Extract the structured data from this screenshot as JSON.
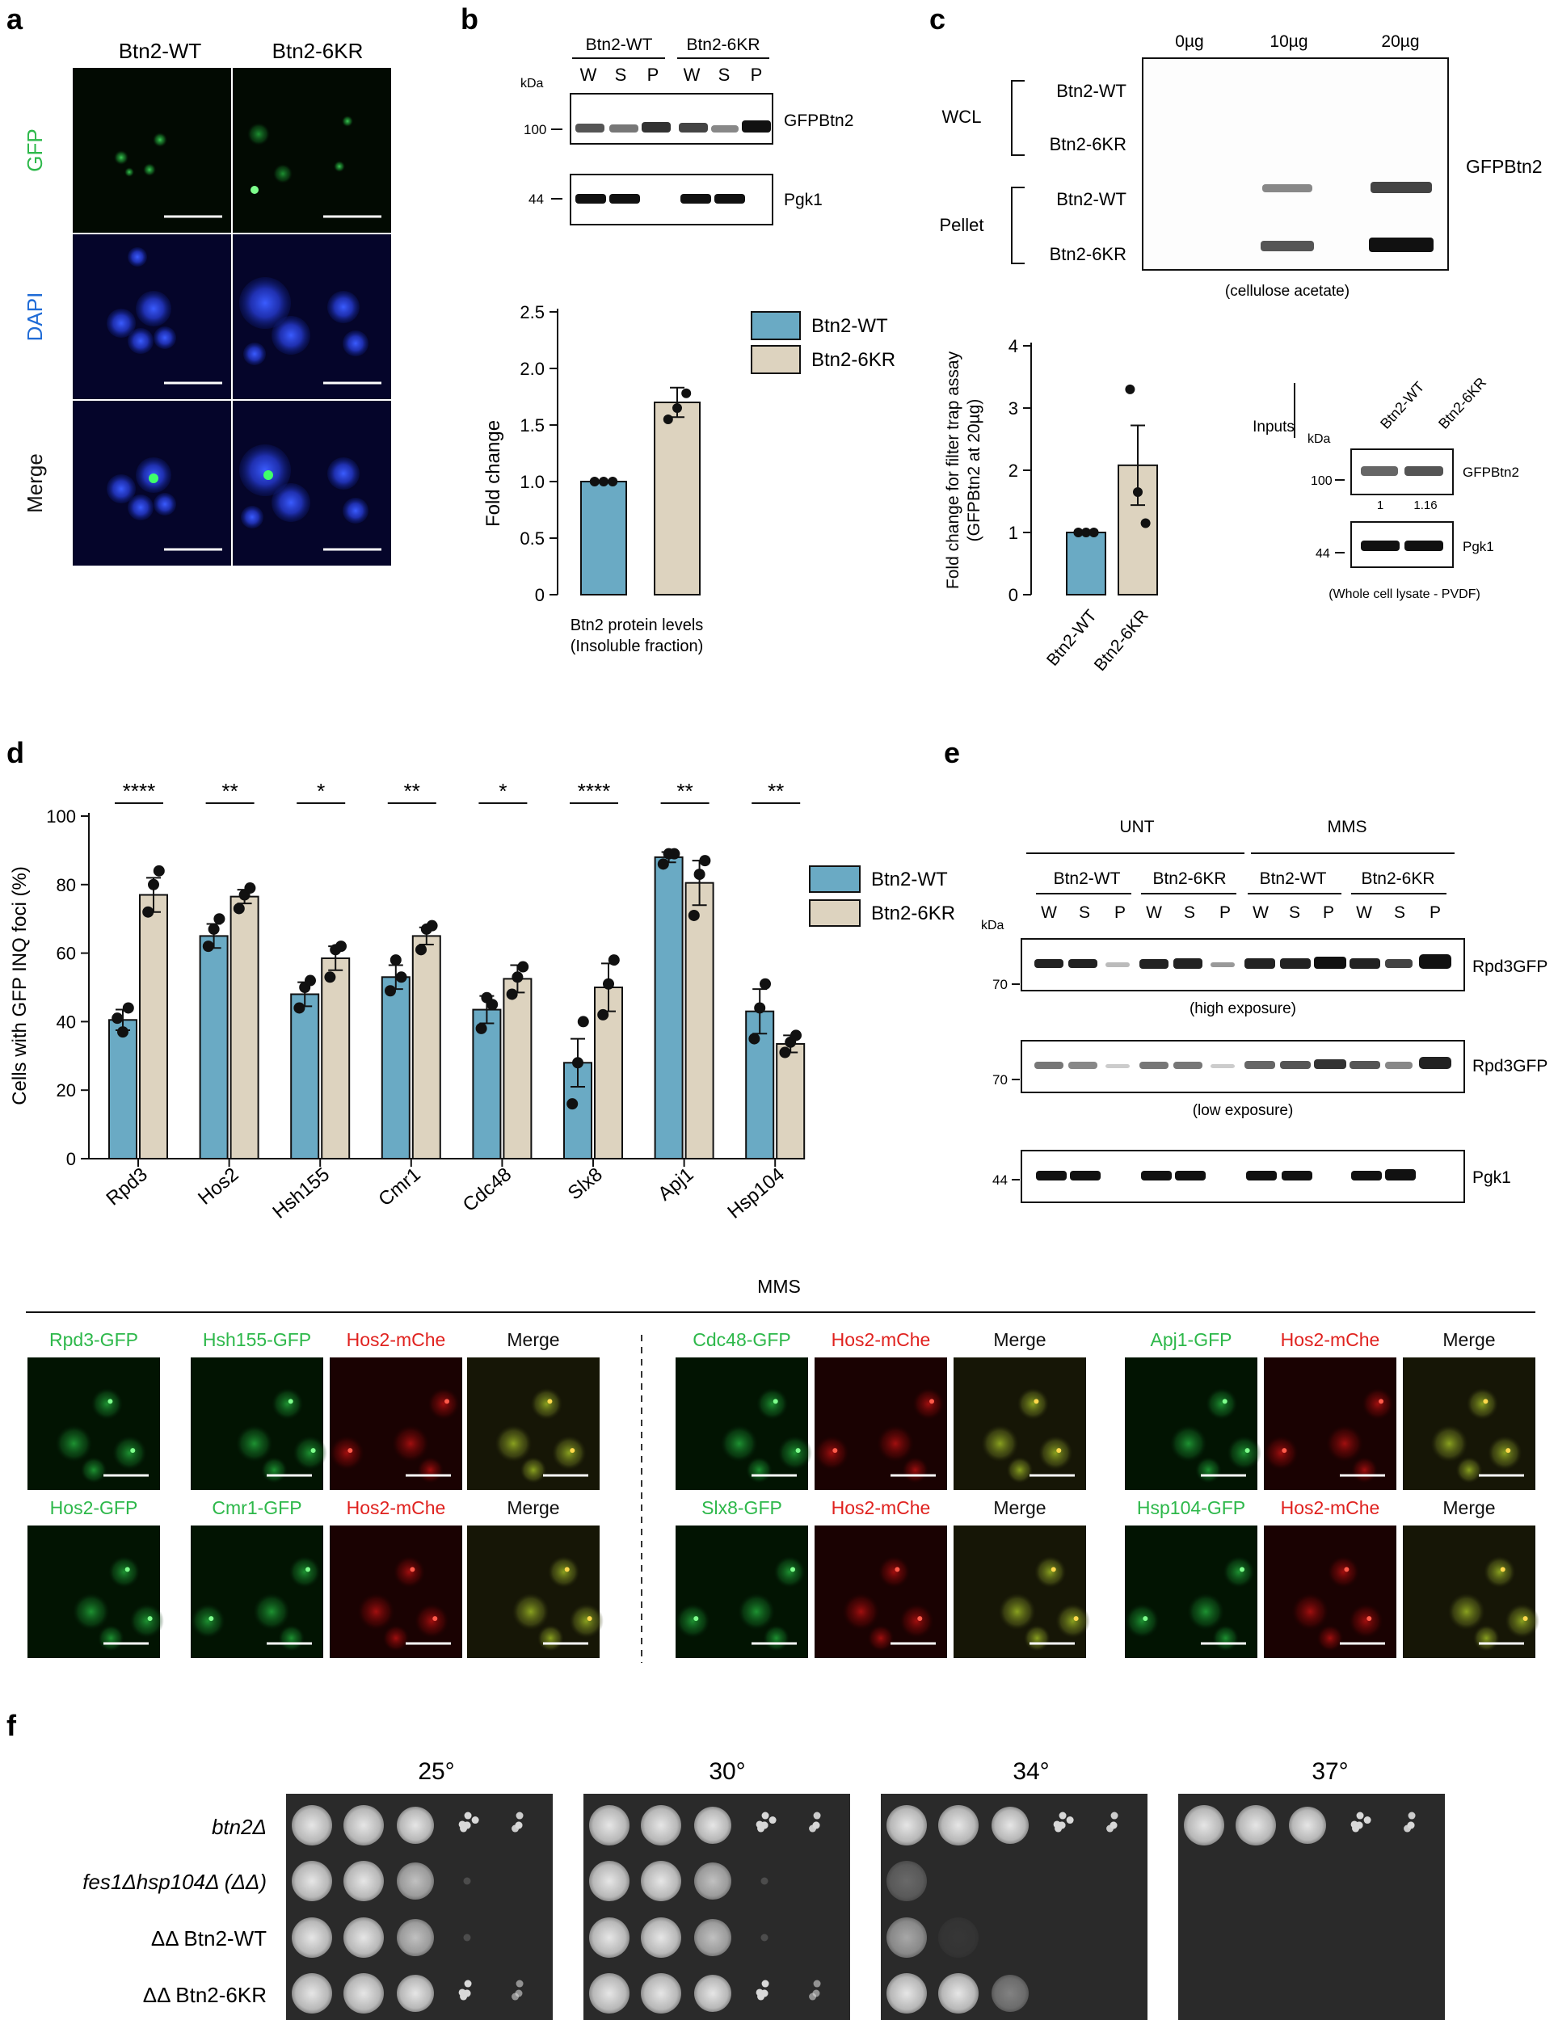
{
  "panels": {
    "a": "a",
    "b": "b",
    "c": "c",
    "d": "d",
    "e": "e",
    "f": "f"
  },
  "colors": {
    "wt": "#6aaac4",
    "kr": "#ddd3bf",
    "gfp": "#2db84a",
    "dapi": "#1f6bd6",
    "mche": "#e0221f"
  },
  "panel_a": {
    "columns": [
      "Btn2-WT",
      "Btn2-6KR"
    ],
    "rows": [
      "GFP",
      "DAPI",
      "Merge"
    ]
  },
  "panel_b": {
    "blot_groups": [
      "Btn2-WT",
      "Btn2-6KR"
    ],
    "lanes": [
      "W",
      "S",
      "P",
      "W",
      "S",
      "P"
    ],
    "kda": "kDa",
    "markers": [
      "100",
      "44"
    ],
    "bands": [
      "GFPBtn2",
      "Pgk1"
    ],
    "xcaption_1": "Btn2 protein levels",
    "xcaption_2": "(Insoluble fraction)"
  },
  "panel_c": {
    "loads": [
      "0µg",
      "10µg",
      "20µg"
    ],
    "groups": [
      "WCL",
      "Pellet"
    ],
    "rows": [
      "Btn2-WT",
      "Btn2-6KR",
      "Btn2-WT",
      "Btn2-6KR"
    ],
    "band_label": "GFPBtn2",
    "membrane": "(cellulose acetate)",
    "inputs": {
      "title": "Inputs",
      "kda": "kDa",
      "lanes": [
        "Btn2-WT",
        "Btn2-6KR"
      ],
      "markers": [
        "100",
        "44"
      ],
      "bands": [
        "GFPBtn2",
        "Pgk1"
      ],
      "quant": [
        "1",
        "1.16"
      ],
      "caption": "(Whole cell lysate - PVDF)"
    }
  },
  "panel_e": {
    "conditions": [
      "UNT",
      "MMS"
    ],
    "groups": [
      "Btn2-WT",
      "Btn2-6KR",
      "Btn2-WT",
      "Btn2-6KR"
    ],
    "lanes": [
      "W",
      "S",
      "P",
      "W",
      "S",
      "P",
      "W",
      "S",
      "P",
      "W",
      "S",
      "P"
    ],
    "kda": "kDa",
    "markers": [
      "70",
      "70",
      "44"
    ],
    "bands": [
      "Rpd3GFP",
      "Rpd3GFP",
      "Pgk1"
    ],
    "exposures": [
      "(high exposure)",
      "(low exposure)"
    ]
  },
  "micro_mms": {
    "title": "MMS",
    "row1": [
      "Rpd3-GFP",
      "Hsh155-GFP",
      "Hos2-mChe",
      "Merge",
      "Cdc48-GFP",
      "Hos2-mChe",
      "Merge",
      "Apj1-GFP",
      "Hos2-mChe",
      "Merge"
    ],
    "row2": [
      "Hos2-GFP",
      "Cmr1-GFP",
      "Hos2-mChe",
      "Merge",
      "Slx8-GFP",
      "Hos2-mChe",
      "Merge",
      "Hsp104-GFP",
      "Hos2-mChe",
      "Merge"
    ]
  },
  "panel_f": {
    "temps": [
      "25°",
      "30°",
      "34°",
      "37°"
    ],
    "strains": [
      "btn2Δ",
      "fes1Δhsp104Δ (ΔΔ)",
      "ΔΔ Btn2-WT",
      "ΔΔ Btn2-6KR"
    ],
    "growth": [
      [
        5,
        5,
        5,
        5
      ],
      [
        3,
        3,
        0.5,
        0
      ],
      [
        3,
        3,
        1,
        0
      ],
      [
        4.5,
        4.5,
        2.5,
        0
      ]
    ]
  },
  "chart_data": [
    {
      "id": "b",
      "type": "bar",
      "categories": [
        "Btn2-WT",
        "Btn2-6KR"
      ],
      "values": [
        1.0,
        1.7
      ],
      "points": [
        [
          1.0,
          1.0,
          1.0
        ],
        [
          1.55,
          1.65,
          1.78
        ]
      ],
      "error": [
        0,
        0.13
      ],
      "ylabel": "Fold change",
      "ylim": [
        0,
        2.5
      ],
      "yticks": [
        "0",
        "0.5",
        "1.0",
        "1.5",
        "2.0",
        "2.5"
      ],
      "legend": [
        "Btn2-WT",
        "Btn2-6KR"
      ],
      "legend_position": "top-right"
    },
    {
      "id": "c",
      "type": "bar",
      "categories": [
        "Btn2-WT",
        "Btn2-6KR"
      ],
      "values": [
        1.0,
        2.08
      ],
      "points": [
        [
          1.0,
          1.0,
          1.0
        ],
        [
          3.3,
          1.65,
          1.15
        ]
      ],
      "error": [
        0,
        0.64
      ],
      "ylabel_1": "Fold change for filter trap assay",
      "ylabel_2": "(GFPBtn2 at 20µg)",
      "ylim": [
        0,
        4
      ],
      "yticks": [
        "0",
        "1",
        "2",
        "3",
        "4"
      ]
    },
    {
      "id": "d",
      "type": "bar",
      "categories": [
        "Rpd3",
        "Hos2",
        "Hsh155",
        "Cmr1",
        "Cdc48",
        "Slx8",
        "Apj1",
        "Hsp104"
      ],
      "series": [
        {
          "name": "Btn2-WT",
          "values": [
            40.5,
            65,
            48,
            53,
            43.5,
            28,
            88,
            43
          ],
          "error": [
            3,
            3.5,
            3.5,
            3.5,
            4,
            7,
            1.5,
            6.5
          ],
          "points": [
            [
              41,
              37,
              44
            ],
            [
              62,
              67,
              70
            ],
            [
              44,
              50,
              52
            ],
            [
              49,
              58,
              53
            ],
            [
              38,
              47,
              45
            ],
            [
              16,
              28,
              40
            ],
            [
              86,
              89,
              89
            ],
            [
              35,
              44,
              51
            ]
          ]
        },
        {
          "name": "Btn2-6KR",
          "values": [
            77,
            76.5,
            58.5,
            65,
            52.5,
            50,
            80.5,
            33.5
          ],
          "error": [
            5,
            2,
            3.5,
            2.5,
            4,
            7,
            6.5,
            2.5
          ],
          "points": [
            [
              72,
              80,
              84
            ],
            [
              73,
              77,
              79
            ],
            [
              53,
              61,
              62
            ],
            [
              61,
              67,
              68
            ],
            [
              48,
              53,
              56
            ],
            [
              42,
              51,
              58
            ],
            [
              71,
              83,
              87
            ],
            [
              31,
              34,
              36
            ]
          ]
        }
      ],
      "significance": [
        "****",
        "**",
        "*",
        "**",
        "*",
        "****",
        "**",
        "**"
      ],
      "ylabel": "Cells with GFP INQ foci (%)",
      "ylim": [
        0,
        100
      ],
      "yticks": [
        "0",
        "20",
        "40",
        "60",
        "80",
        "100"
      ],
      "legend_position": "top-right"
    }
  ]
}
